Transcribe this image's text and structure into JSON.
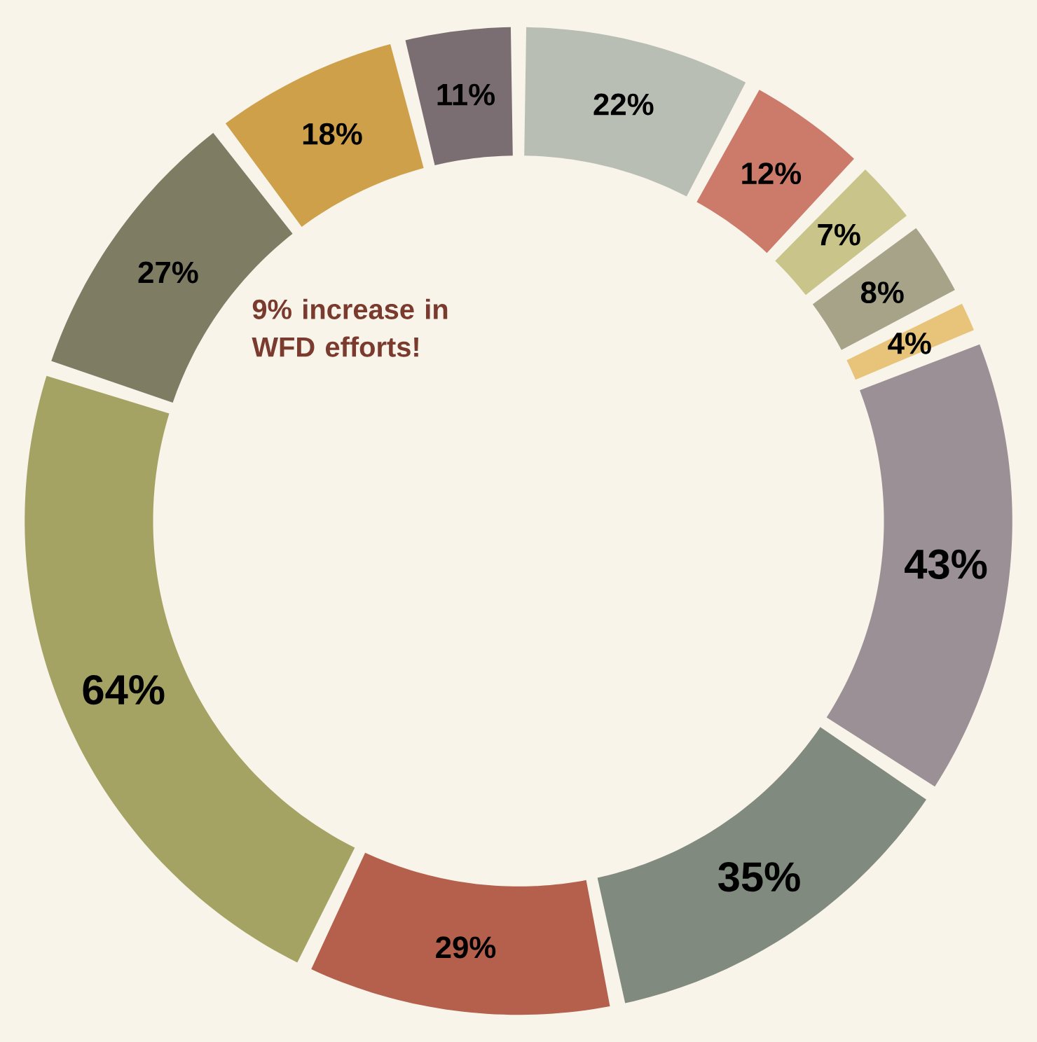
{
  "chart_data": {
    "type": "donut",
    "categories": [
      null,
      null,
      null,
      null,
      null,
      null,
      null,
      null,
      null,
      null,
      null,
      null
    ],
    "values": [
      22,
      12,
      7,
      8,
      4,
      43,
      35,
      29,
      64,
      27,
      18,
      11
    ],
    "value_labels": [
      "22%",
      "12%",
      "7%",
      "8%",
      "4%",
      "43%",
      "35%",
      "29%",
      "64%",
      "27%",
      "18%",
      "11%"
    ],
    "colors": [
      "#b9beb5",
      "#cc7a6a",
      "#c9c58a",
      "#a6a388",
      "#e8c47a",
      "#9a9096",
      "#808a7e",
      "#b5604c",
      "#a5a364",
      "#7f7c64",
      "#cfa04a",
      "#7a6e72"
    ],
    "annotations": [
      "9% increase in WFD efforts!"
    ]
  }
}
